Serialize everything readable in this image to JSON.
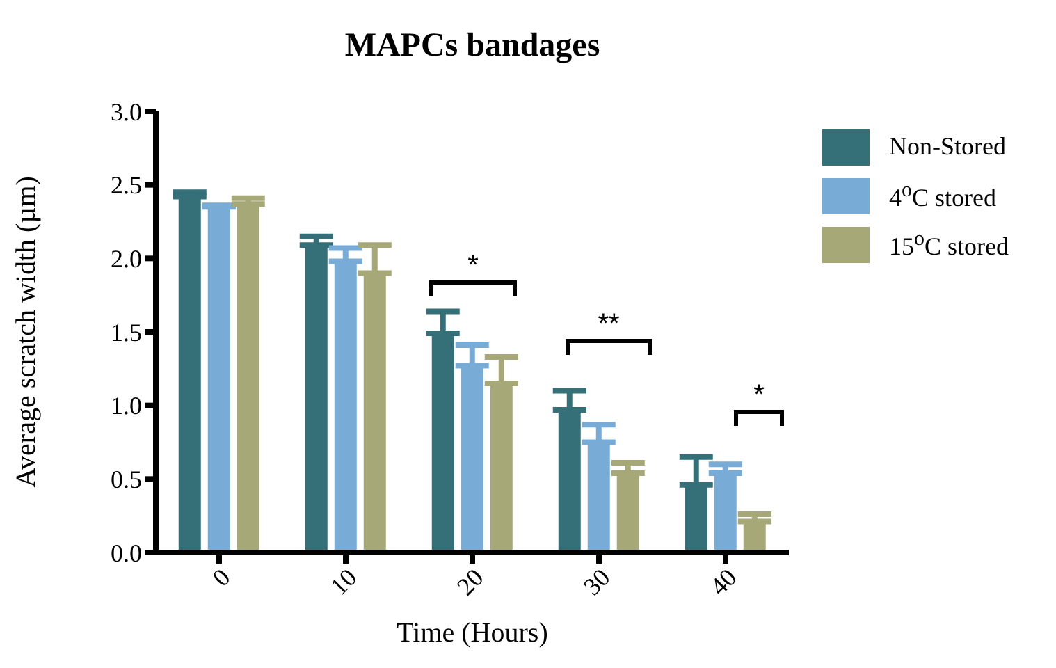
{
  "chart_data": {
    "type": "bar",
    "title": "MAPCs bandages",
    "xlabel": "Time (Hours)",
    "ylabel": "Average scratch width (µm)",
    "categories": [
      "0",
      "10",
      "20",
      "30",
      "40"
    ],
    "series": [
      {
        "name": "Non-Stored",
        "color": "#356f77",
        "values": [
          2.42,
          2.09,
          1.49,
          0.97,
          0.46
        ],
        "errors": [
          0.03,
          0.06,
          0.15,
          0.13,
          0.19
        ]
      },
      {
        "name": "4$^{o}$C stored",
        "color": "#78abd6",
        "values": [
          2.35,
          1.98,
          1.27,
          0.75,
          0.54
        ],
        "errors": [
          0.01,
          0.09,
          0.14,
          0.12,
          0.06
        ]
      },
      {
        "name": "15$^{o}$C stored",
        "color": "#a7a878",
        "values": [
          2.37,
          1.9,
          1.15,
          0.54,
          0.21
        ],
        "errors": [
          0.04,
          0.19,
          0.18,
          0.07,
          0.05
        ]
      }
    ],
    "ylim": [
      0,
      3
    ],
    "yticks": [
      {
        "value": 0,
        "label": "0.0"
      },
      {
        "value": 0.5,
        "label": "0.5"
      },
      {
        "value": 1,
        "label": "1.0"
      },
      {
        "value": 1.5,
        "label": "1.5"
      },
      {
        "value": 2,
        "label": "2.0"
      },
      {
        "value": 2.5,
        "label": "2.5"
      },
      {
        "value": 3,
        "label": "3.0"
      }
    ],
    "annotations": [
      "*",
      "**",
      "*"
    ],
    "legend": "right",
    "grid": false
  }
}
